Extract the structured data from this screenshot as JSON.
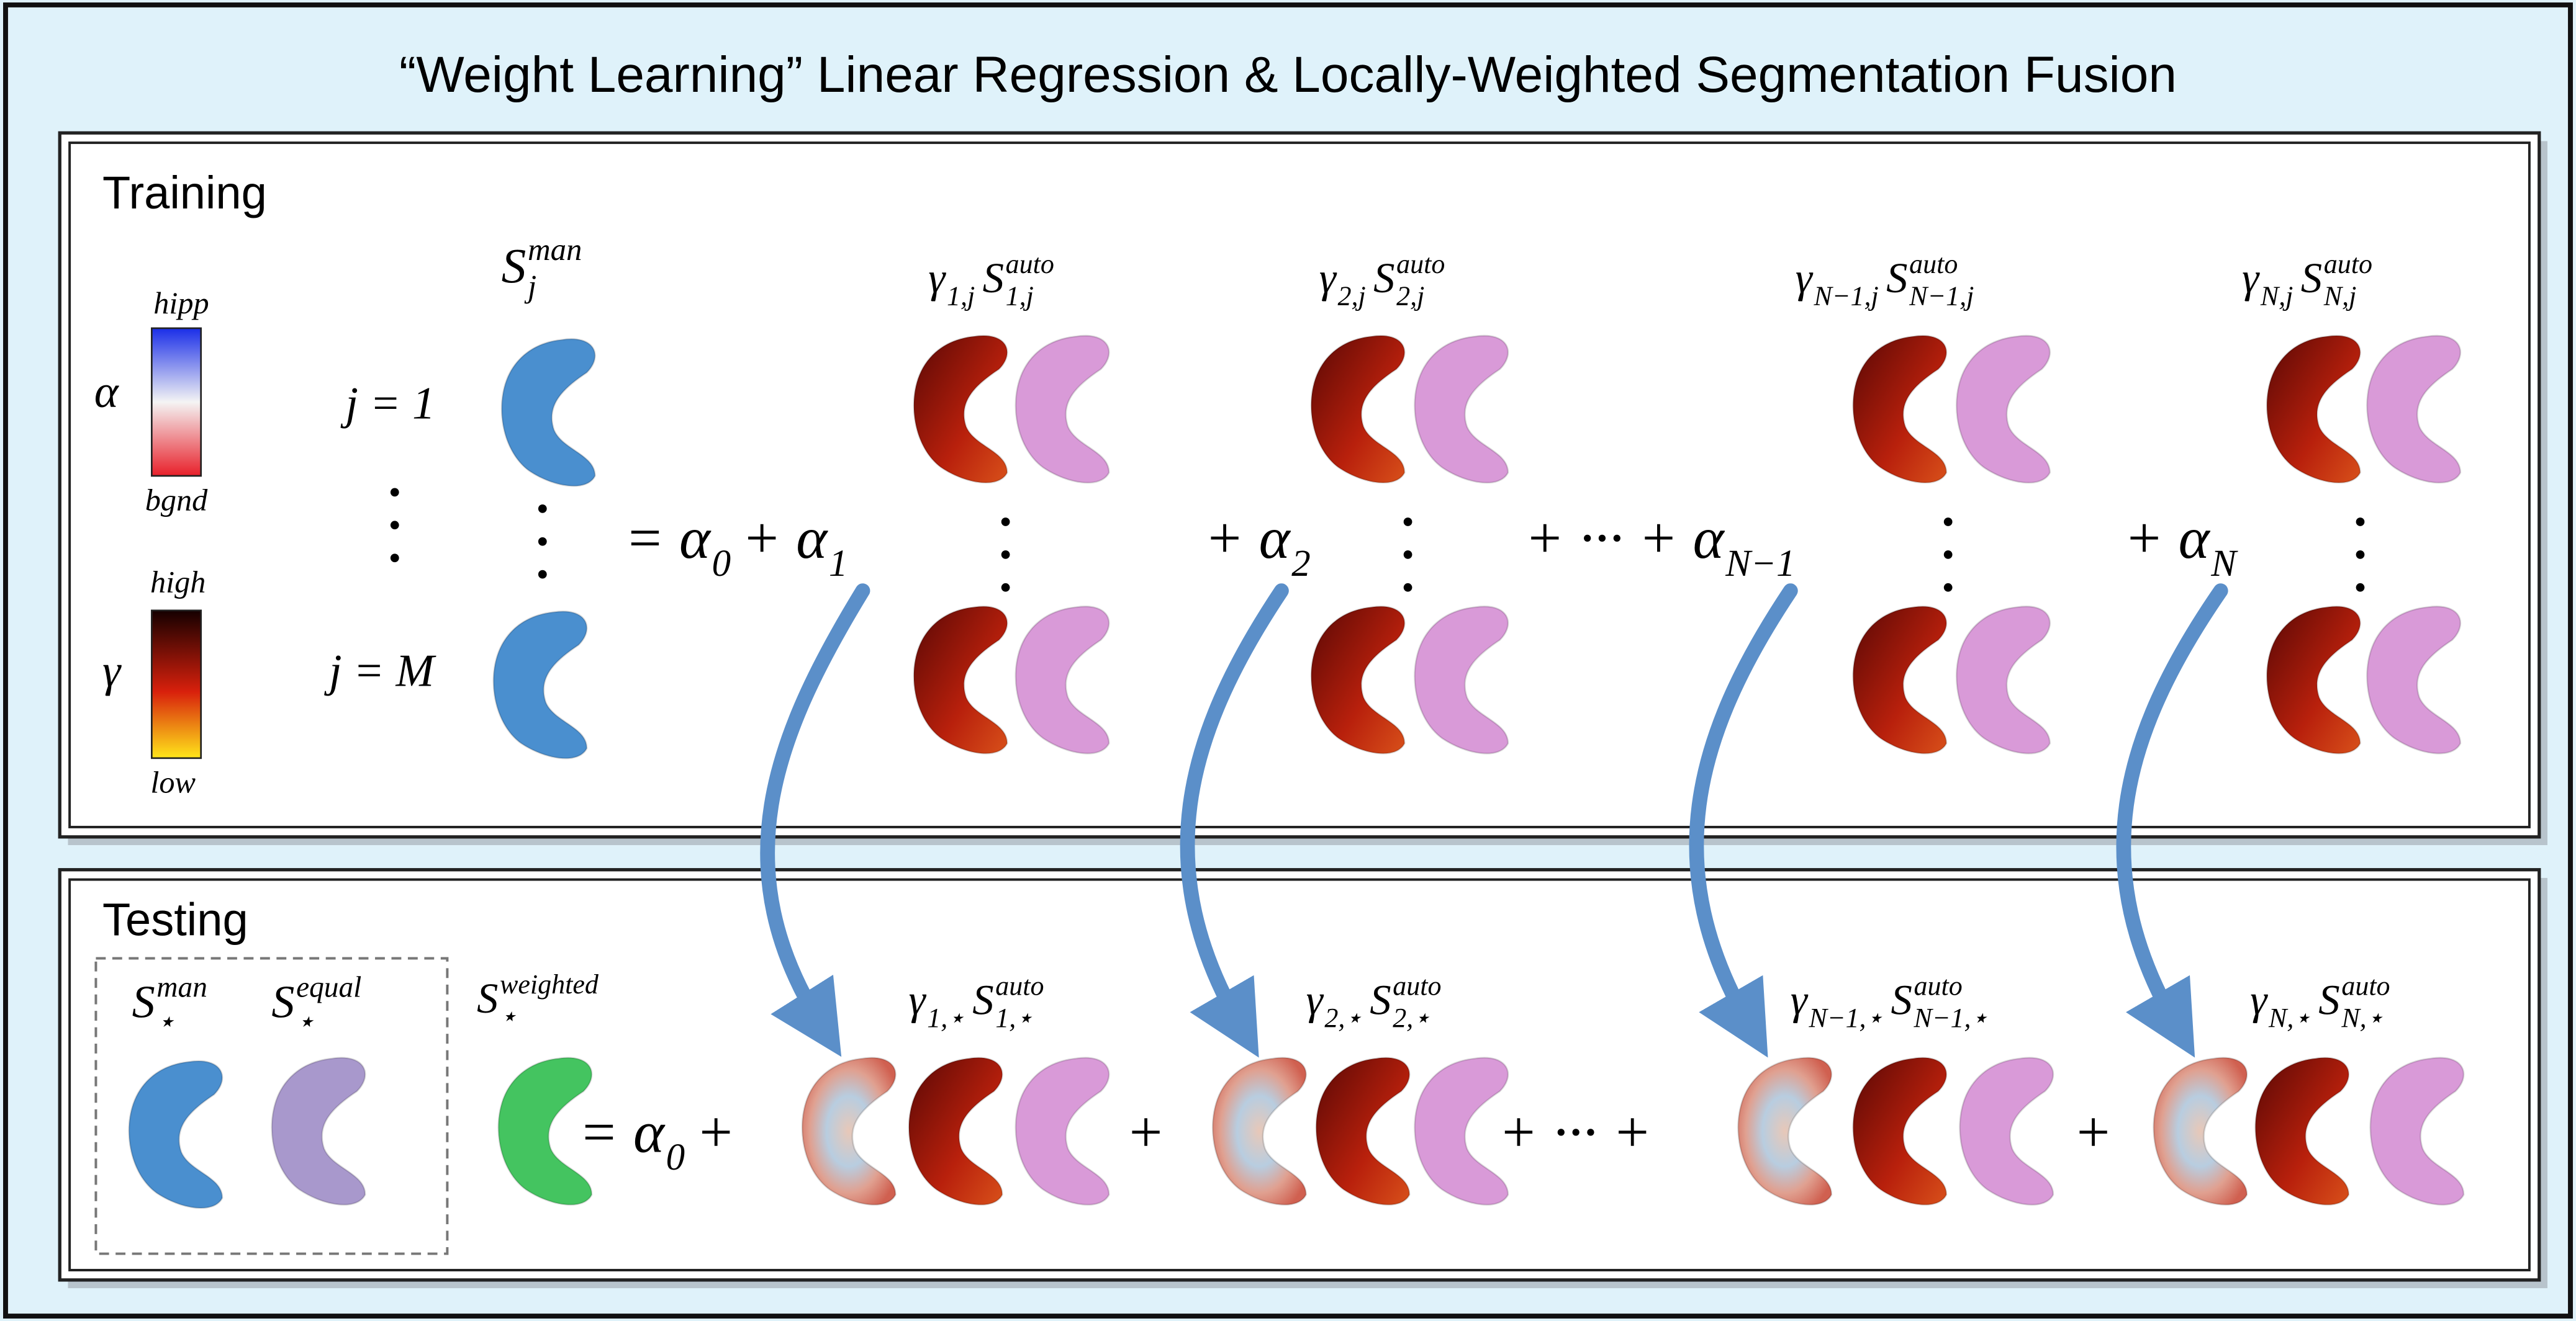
{
  "title": "“Weight Learning” Linear Regression & Locally-Weighted Segmentation Fusion",
  "training": {
    "label": "Training",
    "legend": {
      "alpha": {
        "symbol": "α",
        "top": "hipp",
        "bottom": "bgnd"
      },
      "gamma": {
        "symbol": "γ",
        "top": "high",
        "bottom": "low"
      }
    },
    "rows": [
      "j = 1",
      "j = M"
    ],
    "target": [
      {
        "t": "S",
        "sub": "j",
        "sup": "man"
      }
    ],
    "operators": [
      [
        {
          "t": "= α",
          "sub": "0"
        },
        {
          "t": " + α",
          "sub": "1"
        }
      ],
      [
        {
          "t": "+ α",
          "sub": "2"
        }
      ],
      [
        {
          "t": "+ ··· + α",
          "sub": "N−1"
        }
      ],
      [
        {
          "t": "+  α",
          "sub": "N"
        }
      ]
    ],
    "columns": [
      [
        {
          "t": "γ",
          "sub": "1,j"
        },
        {
          "t": "S",
          "sub": "1,j",
          "sup": "auto"
        }
      ],
      [
        {
          "t": "γ",
          "sub": "2,j"
        },
        {
          "t": "S",
          "sub": "2,j",
          "sup": "auto"
        }
      ],
      [
        {
          "t": "γ",
          "sub": "N−1,j"
        },
        {
          "t": "S",
          "sub": "N−1,j",
          "sup": "auto"
        }
      ],
      [
        {
          "t": "γ",
          "sub": "N,j"
        },
        {
          "t": "S",
          "sub": "N,j",
          "sup": "auto"
        }
      ]
    ]
  },
  "testing": {
    "label": "Testing",
    "references": [
      [
        {
          "t": "S",
          "sub": "⋆",
          "sup": "man"
        }
      ],
      [
        {
          "t": "S",
          "sub": "⋆",
          "sup": "equal"
        }
      ]
    ],
    "target": [
      {
        "t": "S",
        "sub": "⋆",
        "sup": "weighted"
      }
    ],
    "operators": [
      [
        {
          "t": "= α",
          "sub": "0"
        },
        {
          "t": "+"
        }
      ],
      [
        {
          "t": "+"
        }
      ],
      [
        {
          "t": "+ ··· +"
        }
      ],
      [
        {
          "t": "+"
        }
      ]
    ],
    "columns": [
      [
        {
          "t": "γ",
          "sub": "1,⋆"
        },
        {
          "t": "S",
          "sub": "1,⋆",
          "sup": "auto"
        }
      ],
      [
        {
          "t": "γ",
          "sub": "2,⋆"
        },
        {
          "t": "S",
          "sub": "2,⋆",
          "sup": "auto"
        }
      ],
      [
        {
          "t": "γ",
          "sub": "N−1,⋆"
        },
        {
          "t": "S",
          "sub": "N−1,⋆",
          "sup": "auto"
        }
      ],
      [
        {
          "t": "γ",
          "sub": "N,⋆"
        },
        {
          "t": "S",
          "sub": "N,⋆",
          "sup": "auto"
        }
      ]
    ]
  }
}
